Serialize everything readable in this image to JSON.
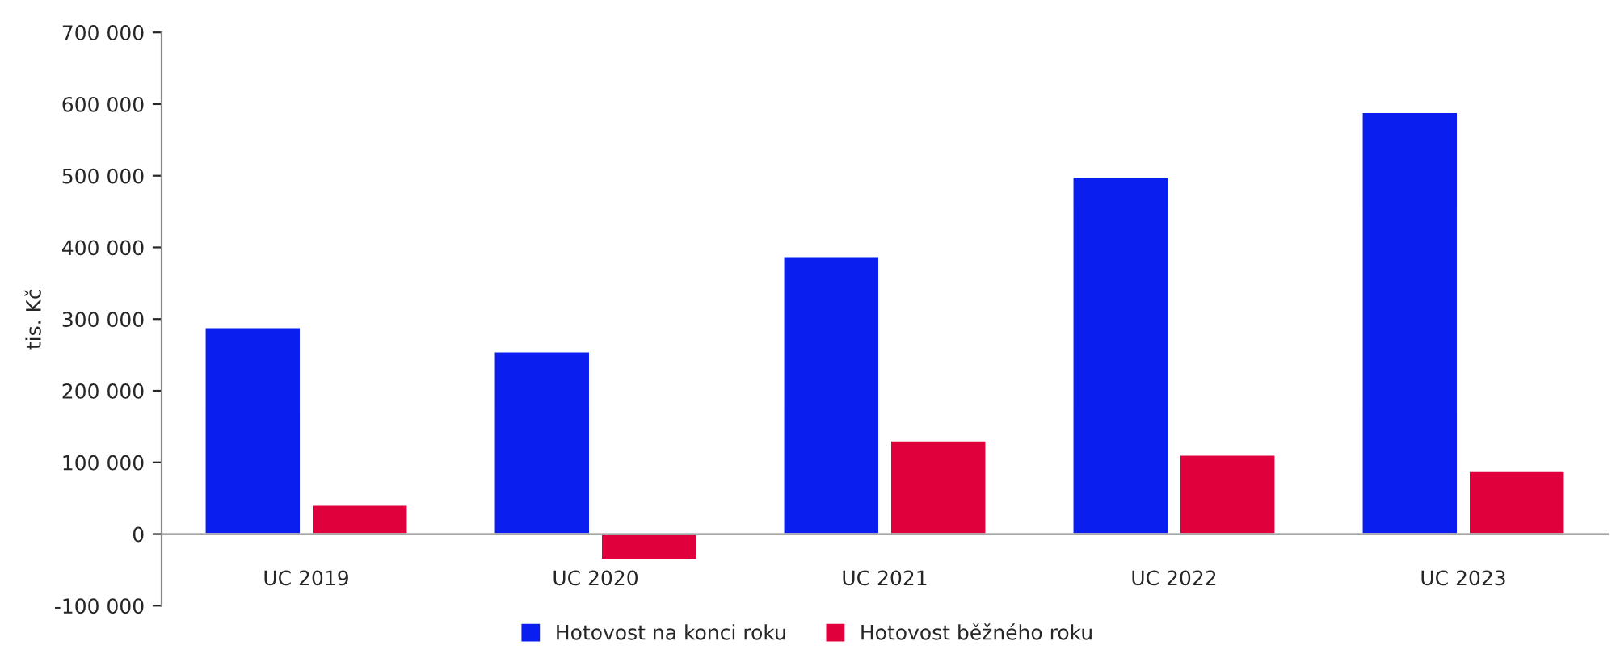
{
  "chart_data": {
    "type": "bar",
    "ylabel": "tis. Kč",
    "categories": [
      "UC 2019",
      "UC 2020",
      "UC 2021",
      "UC 2022",
      "UC 2023"
    ],
    "series": [
      {
        "name": "Hotovost na konci roku",
        "color": "#0a1ef0",
        "values": [
          289000,
          255000,
          388000,
          499000,
          589000
        ]
      },
      {
        "name": "Hotovost běžného roku",
        "color": "#e0003c",
        "values": [
          41000,
          -36000,
          131000,
          111000,
          88000
        ]
      }
    ],
    "ylim": [
      -100000,
      700000
    ],
    "yticks": [
      {
        "value": -100000,
        "label": "-100 000"
      },
      {
        "value": 0,
        "label": "0"
      },
      {
        "value": 100000,
        "label": "100 000"
      },
      {
        "value": 200000,
        "label": "200 000"
      },
      {
        "value": 300000,
        "label": "300 000"
      },
      {
        "value": 400000,
        "label": "400 000"
      },
      {
        "value": 500000,
        "label": "500 000"
      },
      {
        "value": 600000,
        "label": "600 000"
      },
      {
        "value": 700000,
        "label": "700 000"
      }
    ],
    "grid": false,
    "legend": "bottom"
  }
}
